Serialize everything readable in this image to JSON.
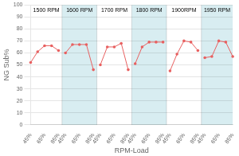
{
  "chart_data": {
    "type": "line",
    "xlabel": "RPM-Load",
    "ylabel": "NG Sub%",
    "categories": [
      "45%",
      null,
      "65%",
      null,
      "85%",
      "45%",
      null,
      "65%",
      null,
      "85%",
      "45%",
      null,
      "65%",
      null,
      "85%",
      "45%",
      null,
      "65%",
      null,
      "85%",
      "45%",
      null,
      "65%",
      null,
      "85%",
      "45%",
      null,
      "65%",
      null,
      "85%"
    ],
    "series": [
      {
        "name": "1500 RPM",
        "color": "#e86060",
        "marker": "circle",
        "values": [
          52,
          61,
          66,
          66,
          62,
          null,
          null,
          null,
          null,
          null,
          null,
          null,
          null,
          null,
          null,
          null,
          null,
          null,
          null,
          null,
          null,
          null,
          null,
          null,
          null,
          null,
          null,
          null,
          null,
          null
        ]
      },
      {
        "name": "1600 RPM",
        "color": "#e86060",
        "marker": "circle",
        "values": [
          null,
          null,
          null,
          null,
          null,
          60,
          67,
          67,
          67,
          46,
          null,
          null,
          null,
          null,
          null,
          null,
          null,
          null,
          null,
          null,
          null,
          null,
          null,
          null,
          null,
          null,
          null,
          null,
          null,
          null
        ]
      },
      {
        "name": "1700 RPM",
        "color": "#e86060",
        "marker": "circle",
        "values": [
          null,
          null,
          null,
          null,
          null,
          null,
          null,
          null,
          null,
          null,
          50,
          65,
          65,
          68,
          46,
          null,
          null,
          null,
          null,
          null,
          null,
          null,
          null,
          null,
          null,
          null,
          null,
          null,
          null,
          null
        ]
      },
      {
        "name": "1800 RPM",
        "color": "#e86060",
        "marker": "circle",
        "values": [
          null,
          null,
          null,
          null,
          null,
          null,
          null,
          null,
          null,
          null,
          null,
          null,
          null,
          null,
          null,
          51,
          65,
          69,
          69,
          69,
          null,
          null,
          null,
          null,
          null,
          null,
          null,
          null,
          null,
          null
        ]
      },
      {
        "name": "1900RPM",
        "color": "#e86060",
        "marker": "circle",
        "values": [
          null,
          null,
          null,
          null,
          null,
          null,
          null,
          null,
          null,
          null,
          null,
          null,
          null,
          null,
          null,
          null,
          null,
          null,
          null,
          null,
          45,
          59,
          70,
          69,
          62,
          null,
          null,
          null,
          null,
          null
        ]
      },
      {
        "name": "1950 RPM",
        "color": "#e86060",
        "marker": "circle",
        "values": [
          null,
          null,
          null,
          null,
          null,
          null,
          null,
          null,
          null,
          null,
          null,
          null,
          null,
          null,
          null,
          null,
          null,
          null,
          null,
          null,
          null,
          null,
          null,
          null,
          null,
          56,
          57,
          70,
          69,
          57
        ]
      }
    ],
    "ylim": [
      0,
      100
    ],
    "yticks": [
      0,
      10,
      20,
      30,
      40,
      50,
      60,
      70,
      80,
      90,
      100
    ],
    "grid": true
  }
}
